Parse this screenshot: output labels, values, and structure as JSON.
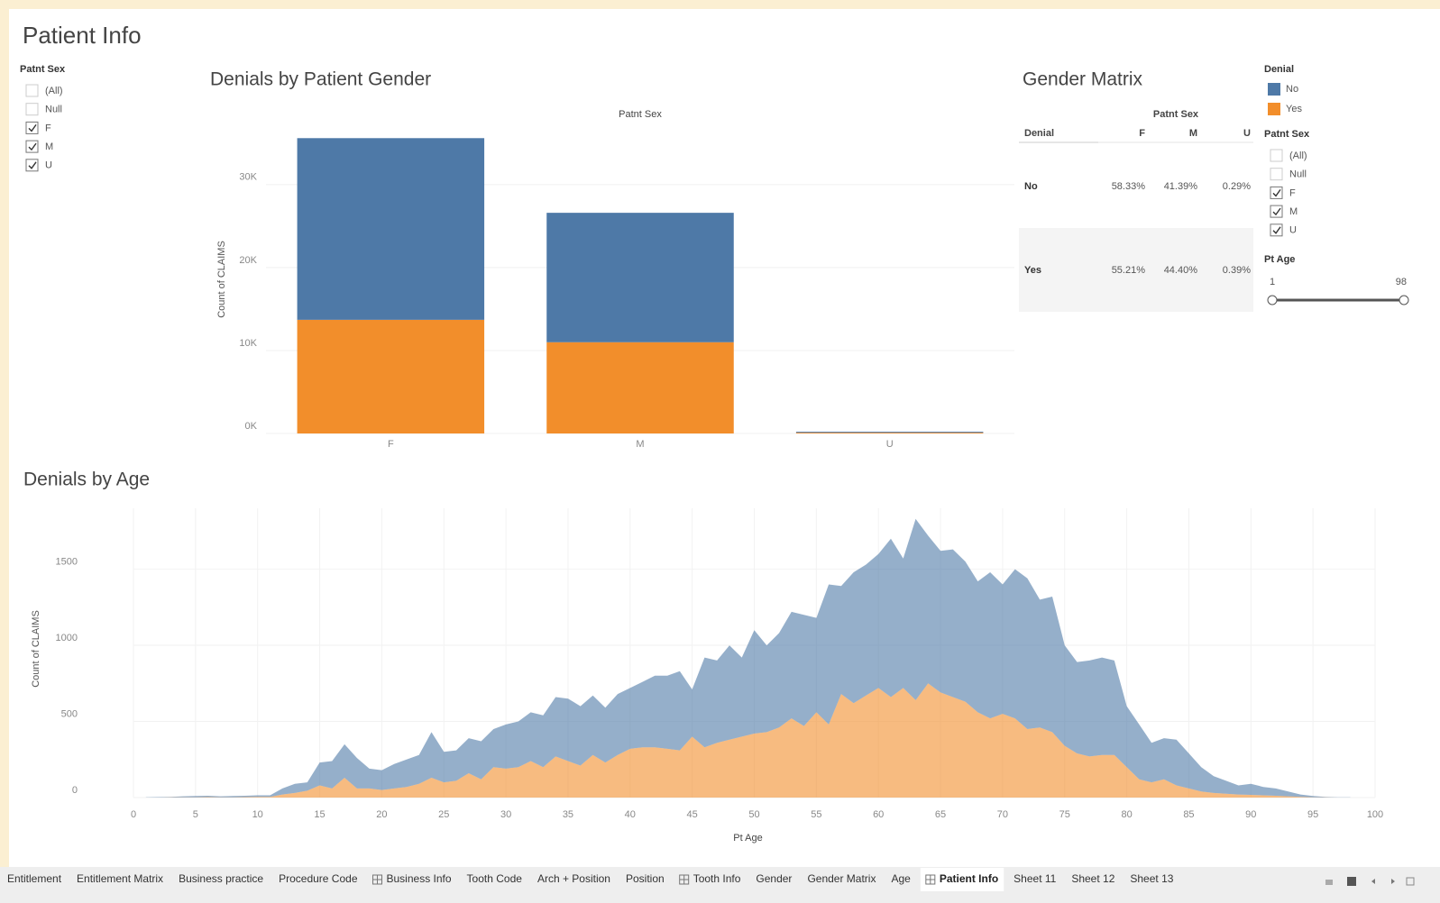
{
  "title": "Patient Info",
  "filters": [
    {
      "title": "Patnt Sex",
      "items": [
        {
          "label": "(All)",
          "checked": false
        },
        {
          "label": "Null",
          "checked": false
        },
        {
          "label": "F",
          "checked": true
        },
        {
          "label": "M",
          "checked": true
        },
        {
          "label": "U",
          "checked": true
        }
      ]
    },
    {
      "title": "Patnt Sex",
      "items": [
        {
          "label": "(All)",
          "checked": false
        },
        {
          "label": "Null",
          "checked": false
        },
        {
          "label": "F",
          "checked": true
        },
        {
          "label": "M",
          "checked": true
        },
        {
          "label": "U",
          "checked": true
        }
      ]
    }
  ],
  "legend": {
    "title": "Denial"
  },
  "slider": {
    "title": "Pt Age",
    "min": 1,
    "max": 98
  },
  "matrix": {
    "title": "Gender Matrix",
    "column_header": "Patnt Sex",
    "columns": [
      "Denial",
      "F",
      "M",
      "U"
    ],
    "rows": [
      [
        "No",
        "58.33%",
        "41.39%",
        "0.29%"
      ],
      [
        "Yes",
        "55.21%",
        "44.40%",
        "0.39%"
      ]
    ]
  },
  "chart_data": [
    {
      "type": "bar",
      "stacked": true,
      "title": "Denials by Patient Gender",
      "x_label": "Patnt Sex",
      "y_label": "Count of CLAIMS",
      "categories": [
        "F",
        "M",
        "U"
      ],
      "series": [
        {
          "name": "No",
          "color": "#4e79a7",
          "values": [
            21900,
            15600,
            108
          ]
        },
        {
          "name": "Yes",
          "color": "#f28e2b",
          "values": [
            13700,
            11000,
            98
          ]
        }
      ],
      "ylim": [
        0,
        36500
      ],
      "yticks": [
        {
          "value": 0,
          "label": "0K"
        },
        {
          "value": 10000,
          "label": "10K"
        },
        {
          "value": 20000,
          "label": "20K"
        },
        {
          "value": 30000,
          "label": "30K"
        }
      ],
      "grid": true
    },
    {
      "type": "area",
      "stacked": true,
      "opacity": 0.6,
      "title": "Denials by Age",
      "x_label": "Pt Age",
      "y_label": "Count of CLAIMS",
      "x": [
        1,
        2,
        3,
        4,
        5,
        6,
        7,
        8,
        9,
        10,
        11,
        12,
        13,
        14,
        15,
        16,
        17,
        18,
        19,
        20,
        21,
        22,
        23,
        24,
        25,
        26,
        27,
        28,
        29,
        30,
        31,
        32,
        33,
        34,
        35,
        36,
        37,
        38,
        39,
        40,
        41,
        42,
        43,
        44,
        45,
        46,
        47,
        48,
        49,
        50,
        51,
        52,
        53,
        54,
        55,
        56,
        57,
        58,
        59,
        60,
        61,
        62,
        63,
        64,
        65,
        66,
        67,
        68,
        69,
        70,
        71,
        72,
        73,
        74,
        75,
        76,
        77,
        78,
        79,
        80,
        81,
        82,
        83,
        84,
        85,
        86,
        87,
        88,
        89,
        90,
        91,
        92,
        93,
        94,
        95,
        96,
        97,
        98
      ],
      "series": [
        {
          "name": "No",
          "color": "#4e79a7",
          "values": [
            2,
            3,
            4,
            6,
            8,
            9,
            6,
            8,
            9,
            11,
            10,
            40,
            60,
            55,
            150,
            180,
            220,
            200,
            130,
            130,
            160,
            180,
            190,
            300,
            200,
            200,
            230,
            250,
            250,
            290,
            300,
            320,
            340,
            390,
            410,
            390,
            390,
            360,
            400,
            400,
            430,
            470,
            480,
            520,
            310,
            590,
            540,
            620,
            520,
            680,
            570,
            620,
            700,
            730,
            620,
            920,
            710,
            860,
            860,
            880,
            1040,
            850,
            1190,
            970,
            930,
            970,
            920,
            860,
            960,
            850,
            980,
            990,
            840,
            890,
            660,
            600,
            630,
            640,
            620,
            400,
            360,
            260,
            270,
            300,
            230,
            160,
            110,
            85,
            60,
            72,
            55,
            48,
            32,
            15,
            8,
            4,
            2,
            1
          ]
        },
        {
          "name": "Yes",
          "color": "#f28e2b",
          "values": [
            0,
            0,
            1,
            2,
            2,
            3,
            2,
            2,
            3,
            4,
            5,
            20,
            30,
            45,
            80,
            60,
            130,
            60,
            60,
            50,
            60,
            70,
            90,
            130,
            100,
            110,
            160,
            120,
            200,
            190,
            200,
            240,
            200,
            270,
            240,
            210,
            280,
            230,
            280,
            320,
            330,
            330,
            320,
            310,
            400,
            330,
            360,
            380,
            400,
            420,
            430,
            460,
            520,
            470,
            560,
            480,
            680,
            620,
            670,
            720,
            660,
            720,
            640,
            750,
            690,
            660,
            630,
            560,
            520,
            550,
            520,
            450,
            460,
            430,
            340,
            290,
            270,
            280,
            280,
            200,
            120,
            100,
            120,
            80,
            60,
            40,
            30,
            25,
            20,
            18,
            15,
            12,
            8,
            5,
            2,
            1,
            0,
            0
          ]
        }
      ],
      "xlim": [
        0,
        100
      ],
      "xticks": [
        0,
        5,
        10,
        15,
        20,
        25,
        30,
        35,
        40,
        45,
        50,
        55,
        60,
        65,
        70,
        75,
        80,
        85,
        90,
        95,
        100
      ],
      "ylim": [
        0,
        1900
      ],
      "yticks": [
        0,
        500,
        1000,
        1500
      ],
      "grid": true
    }
  ],
  "tabs": [
    {
      "label": "Entitlement",
      "dashboard": false
    },
    {
      "label": "Entitlement Matrix",
      "dashboard": false
    },
    {
      "label": "Business practice",
      "dashboard": false
    },
    {
      "label": "Procedure Code",
      "dashboard": false
    },
    {
      "label": "Business Info",
      "dashboard": true
    },
    {
      "label": "Tooth Code",
      "dashboard": false
    },
    {
      "label": "Arch + Position",
      "dashboard": false
    },
    {
      "label": "Position",
      "dashboard": false
    },
    {
      "label": "Tooth Info",
      "dashboard": true
    },
    {
      "label": "Gender",
      "dashboard": false
    },
    {
      "label": "Gender Matrix",
      "dashboard": false
    },
    {
      "label": "Age",
      "dashboard": false
    },
    {
      "label": "Patient Info",
      "dashboard": true,
      "active": true
    },
    {
      "label": "Sheet 11",
      "dashboard": false
    },
    {
      "label": "Sheet 12",
      "dashboard": false
    },
    {
      "label": "Sheet 13",
      "dashboard": false
    }
  ]
}
